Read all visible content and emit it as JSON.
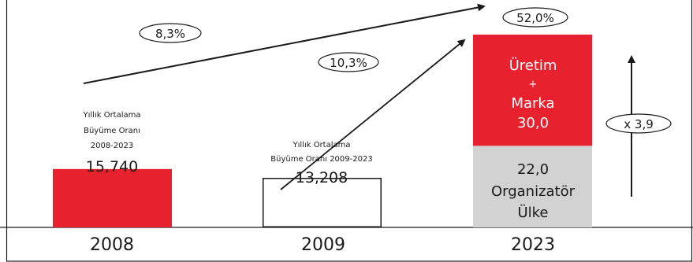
{
  "chart_data": {
    "type": "bar",
    "categories": [
      "2008",
      "2009",
      "2023"
    ],
    "series": [
      {
        "values": [
          15.74,
          13.208,
          22.0
        ]
      },
      {
        "values": [
          0,
          0,
          30.0
        ]
      }
    ],
    "value_labels": [
      "15,740",
      "13,208"
    ],
    "stack_labels": {
      "top": [
        "Üretim",
        "+",
        "Marka",
        "30,0"
      ],
      "bottom": [
        "22,0",
        "Organizatör",
        "Ülke"
      ]
    },
    "annotations": {
      "cagr_2008": {
        "value": "8,3%",
        "text": [
          "Yıllık Ortalama",
          "Büyüme Oranı",
          "2008-2023"
        ]
      },
      "cagr_2009": {
        "value": "10,3%",
        "text": [
          "Yıllık Ortalama",
          "Büyüme Oranı  2009-2023"
        ]
      },
      "share": "52,0%",
      "multiplier": "x 3,9"
    },
    "colors": {
      "red": "#e8212e",
      "gray": "#d2d2d2",
      "outline": "#1a1a1a"
    }
  }
}
